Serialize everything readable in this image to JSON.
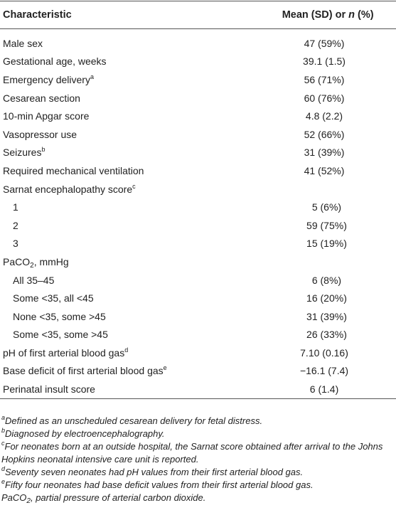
{
  "table": {
    "header": {
      "characteristic": "Characteristic",
      "value": [
        "Mean (SD) or ",
        "n",
        " (%)"
      ]
    },
    "rows": [
      {
        "label": "Male sex",
        "value": "47 (59%)"
      },
      {
        "label": "Gestational age, weeks",
        "value": "39.1 (1.5)"
      },
      {
        "label": "Emergency delivery",
        "sup": "a",
        "value": "56 (71%)"
      },
      {
        "label": "Cesarean section",
        "value": "60 (76%)"
      },
      {
        "label": "10-min Apgar score",
        "value": "4.8 (2.2)"
      },
      {
        "label": "Vasopressor use",
        "value": "52 (66%)"
      },
      {
        "label": "Seizures",
        "sup": "b",
        "value": "31 (39%)"
      },
      {
        "label": "Required mechanical ventilation",
        "value": "41 (52%)"
      },
      {
        "label": "Sarnat encephalopathy score",
        "sup": "c",
        "subrows": [
          {
            "label": "1",
            "value": "5 (6%)"
          },
          {
            "label": "2",
            "value": "59 (75%)"
          },
          {
            "label": "3",
            "value": "15 (19%)"
          }
        ]
      },
      {
        "label": "PaCO",
        "sub": "2",
        "rest": ", mmHg",
        "subrows": [
          {
            "label": "All 35–45",
            "value": "6 (8%)"
          },
          {
            "label": "Some <35, all <45",
            "value": "16 (20%)"
          },
          {
            "label": "None <35, some >45",
            "value": "31 (39%)"
          },
          {
            "label": "Some <35, some >45",
            "value": "26 (33%)"
          }
        ]
      },
      {
        "label": "pH of first arterial blood gas",
        "sup": "d",
        "value": "7.10 (0.16)"
      },
      {
        "label": "Base deficit of first arterial blood gas",
        "sup": "e",
        "value": "−16.1 (7.4)"
      },
      {
        "label": "Perinatal insult score",
        "value": "6 (1.4)"
      }
    ],
    "footnotes": [
      {
        "mark": "a",
        "text": "Defined as an unscheduled cesarean delivery for fetal distress."
      },
      {
        "mark": "b",
        "text": "Diagnosed by electroencephalography."
      },
      {
        "mark": "c",
        "text": "For neonates born at an outside hospital, the Sarnat score obtained after arrival to the Johns Hopkins neonatal intensive care unit is reported."
      },
      {
        "mark": "d",
        "text": "Seventy seven neonates had pH values from their first arterial blood gas."
      },
      {
        "mark": "e",
        "text": "Fifty four neonates had base deficit values from their first arterial blood gas."
      },
      {
        "text": "PaCO",
        "sub": "2",
        "rest": ", partial pressure of arterial carbon dioxide."
      }
    ]
  }
}
